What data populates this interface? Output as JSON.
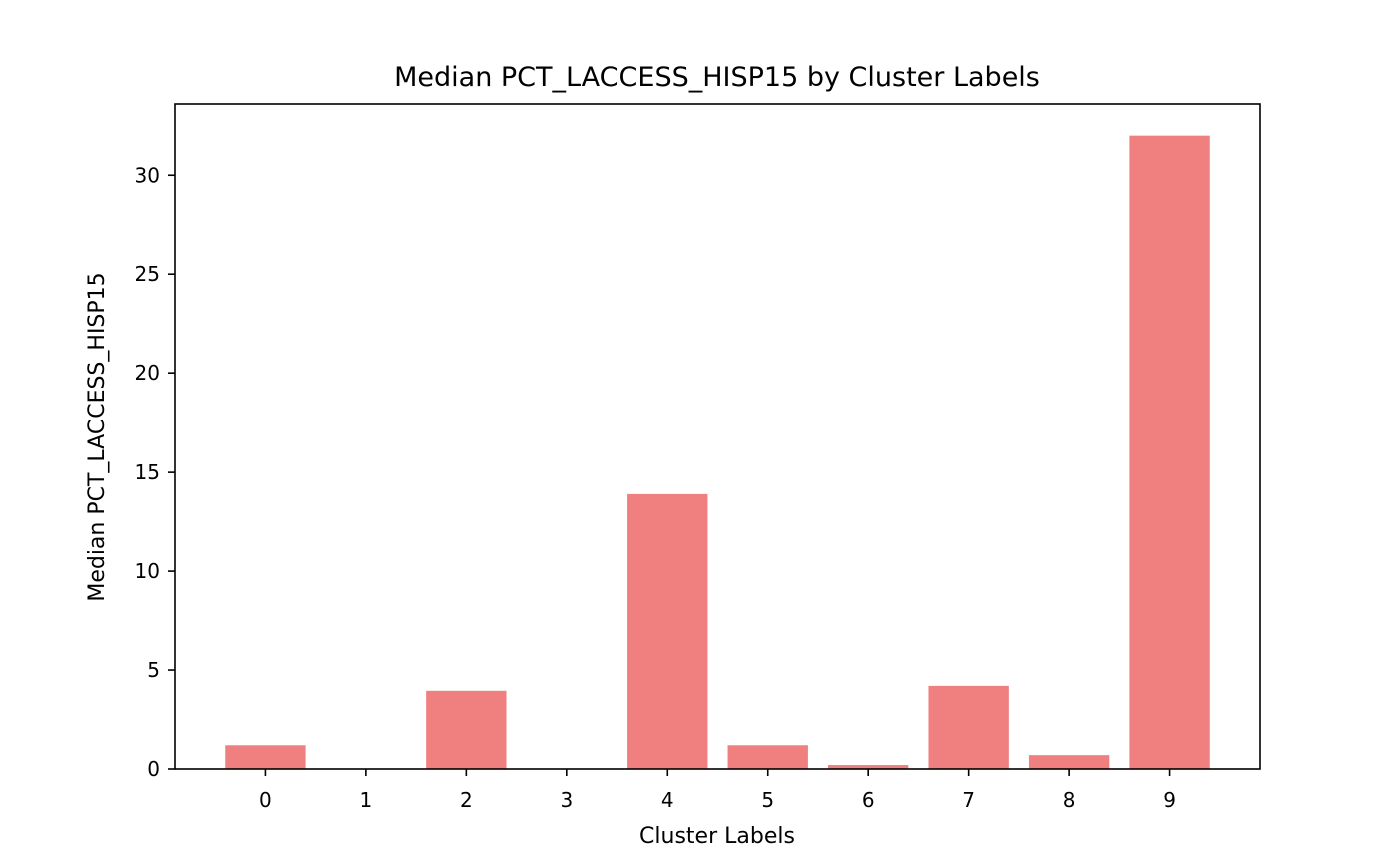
{
  "colors": {
    "bar": "#f08080",
    "axis": "#000000",
    "background": "#ffffff"
  },
  "chart_data": {
    "type": "bar",
    "title": "Median PCT_LACCESS_HISP15 by Cluster Labels",
    "xlabel": "Cluster Labels",
    "ylabel": "Median PCT_LACCESS_HISP15",
    "categories": [
      "0",
      "1",
      "2",
      "3",
      "4",
      "5",
      "6",
      "7",
      "8",
      "9"
    ],
    "values": [
      1.2,
      0.0,
      3.95,
      0.0,
      13.9,
      1.2,
      0.2,
      4.2,
      0.7,
      32.0
    ],
    "ylim": [
      0,
      33.6
    ],
    "yticks": [
      0,
      5,
      10,
      15,
      20,
      25,
      30
    ],
    "grid": false,
    "legend": "none"
  }
}
